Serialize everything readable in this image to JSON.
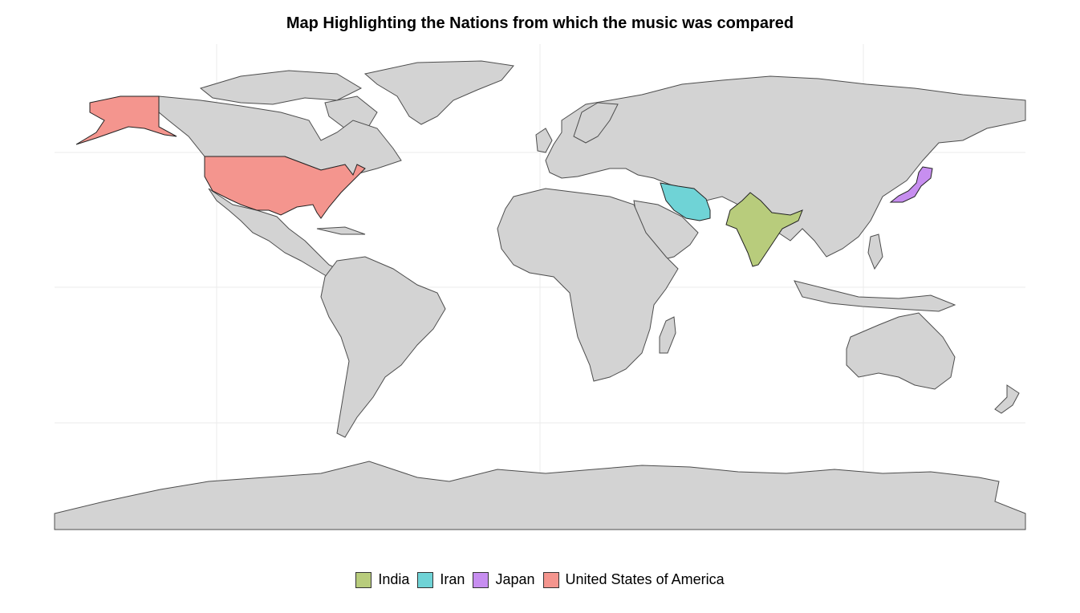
{
  "title": "Map Highlighting the Nations from which the music was compared",
  "legend": [
    {
      "name": "India",
      "color": "#b8cc7c"
    },
    {
      "name": "Iran",
      "color": "#6fd3d6"
    },
    {
      "name": "Japan",
      "color": "#c78ef0"
    },
    {
      "name": "United States of America",
      "color": "#f4958e"
    }
  ],
  "colors": {
    "land": "#d3d3d3",
    "border": "#4d4d4d",
    "grid": "#ebebeb"
  }
}
